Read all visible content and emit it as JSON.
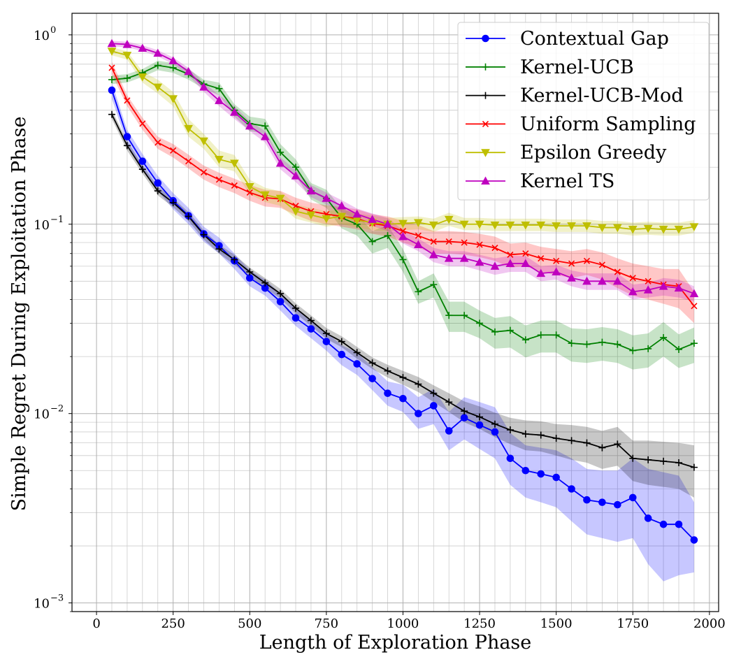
{
  "chart_data": {
    "type": "line",
    "xlabel": "Length of Exploration Phase",
    "ylabel": "Simple Regret During Exploitation Phase",
    "xlim": [
      -80,
      2030
    ],
    "ylim": [
      0.0009,
      1.3
    ],
    "yscale": "log",
    "xticks": [
      0,
      250,
      500,
      750,
      1000,
      1250,
      1500,
      1750,
      2000
    ],
    "xtick_labels": [
      "0",
      "250",
      "500",
      "750",
      "1000",
      "1250",
      "1500",
      "1750",
      "2000"
    ],
    "yticks": [
      0.001,
      0.01,
      0.1,
      1
    ],
    "ytick_labels": [
      "10",
      "10",
      "10",
      "10"
    ],
    "ytick_exps": [
      "−3",
      "−2",
      "−1",
      "0"
    ],
    "grid": true,
    "legend_position": "top-right",
    "x": [
      50,
      100,
      150,
      200,
      250,
      300,
      350,
      400,
      450,
      500,
      550,
      600,
      650,
      700,
      750,
      800,
      850,
      900,
      950,
      1000,
      1050,
      1100,
      1150,
      1200,
      1250,
      1300,
      1350,
      1400,
      1450,
      1500,
      1550,
      1600,
      1650,
      1700,
      1750,
      1800,
      1850,
      1900,
      1950
    ],
    "series": [
      {
        "name": "Contextual Gap",
        "color": "#0000ff",
        "marker": "circle",
        "values": [
          0.51,
          0.29,
          0.215,
          0.165,
          0.133,
          0.111,
          0.089,
          0.077,
          0.064,
          0.052,
          0.046,
          0.039,
          0.032,
          0.028,
          0.024,
          0.0205,
          0.0183,
          0.0153,
          0.0128,
          0.012,
          0.01,
          0.011,
          0.0081,
          0.0095,
          0.0087,
          0.008,
          0.0058,
          0.005,
          0.0048,
          0.0046,
          0.004,
          0.0035,
          0.0034,
          0.0033,
          0.0036,
          0.0028,
          0.0026,
          0.0026,
          0.00215
        ],
        "lower": [
          0.46,
          0.265,
          0.195,
          0.15,
          0.12,
          0.1,
          0.081,
          0.07,
          0.058,
          0.047,
          0.042,
          0.035,
          0.029,
          0.025,
          0.0215,
          0.018,
          0.016,
          0.0133,
          0.011,
          0.0102,
          0.0083,
          0.0088,
          0.0064,
          0.0073,
          0.0065,
          0.0058,
          0.0042,
          0.0036,
          0.0034,
          0.0032,
          0.0027,
          0.0023,
          0.0022,
          0.0021,
          0.0022,
          0.0016,
          0.0013,
          0.0014,
          0.00145
        ],
        "upper": [
          0.56,
          0.315,
          0.235,
          0.18,
          0.146,
          0.122,
          0.097,
          0.085,
          0.07,
          0.057,
          0.051,
          0.043,
          0.036,
          0.031,
          0.0268,
          0.023,
          0.021,
          0.0176,
          0.0148,
          0.0142,
          0.0122,
          0.0135,
          0.0102,
          0.0122,
          0.0115,
          0.0108,
          0.0079,
          0.0068,
          0.0066,
          0.0064,
          0.0058,
          0.0051,
          0.005,
          0.005,
          0.0058,
          0.0051,
          0.0049,
          0.0047,
          0.0034
        ]
      },
      {
        "name": "Kernel-UCB",
        "color": "#008000",
        "marker": "plus",
        "values": [
          0.58,
          0.59,
          0.63,
          0.69,
          0.67,
          0.62,
          0.55,
          0.52,
          0.4,
          0.34,
          0.33,
          0.24,
          0.2,
          0.15,
          0.137,
          0.108,
          0.1,
          0.081,
          0.087,
          0.065,
          0.044,
          0.048,
          0.033,
          0.033,
          0.03,
          0.027,
          0.0275,
          0.0245,
          0.026,
          0.026,
          0.0235,
          0.0232,
          0.0238,
          0.0232,
          0.0215,
          0.022,
          0.0252,
          0.0218,
          0.0235
        ],
        "lower": [
          0.55,
          0.56,
          0.6,
          0.65,
          0.63,
          0.58,
          0.52,
          0.48,
          0.37,
          0.31,
          0.3,
          0.215,
          0.18,
          0.135,
          0.122,
          0.095,
          0.087,
          0.07,
          0.075,
          0.056,
          0.038,
          0.041,
          0.027,
          0.027,
          0.025,
          0.022,
          0.0223,
          0.0198,
          0.021,
          0.021,
          0.0188,
          0.0185,
          0.019,
          0.0185,
          0.0171,
          0.0175,
          0.02,
          0.0174,
          0.0185
        ],
        "upper": [
          0.61,
          0.62,
          0.66,
          0.73,
          0.71,
          0.66,
          0.58,
          0.56,
          0.43,
          0.37,
          0.36,
          0.265,
          0.22,
          0.165,
          0.152,
          0.121,
          0.113,
          0.092,
          0.099,
          0.074,
          0.05,
          0.055,
          0.039,
          0.039,
          0.035,
          0.032,
          0.0327,
          0.0292,
          0.031,
          0.031,
          0.0282,
          0.0279,
          0.0286,
          0.0279,
          0.0259,
          0.0265,
          0.0304,
          0.0262,
          0.0285
        ]
      },
      {
        "name": "Kernel-UCB-Mod",
        "color": "#000000",
        "marker": "plus",
        "values": [
          0.38,
          0.26,
          0.195,
          0.15,
          0.13,
          0.11,
          0.088,
          0.074,
          0.065,
          0.056,
          0.049,
          0.043,
          0.036,
          0.031,
          0.0265,
          0.024,
          0.021,
          0.0185,
          0.0168,
          0.0155,
          0.0143,
          0.0128,
          0.0115,
          0.0103,
          0.0096,
          0.0088,
          0.0082,
          0.0078,
          0.0077,
          0.0074,
          0.0072,
          0.007,
          0.0066,
          0.0069,
          0.0058,
          0.0057,
          0.0056,
          0.0055,
          0.0052
        ],
        "lower": [
          0.36,
          0.245,
          0.185,
          0.142,
          0.123,
          0.104,
          0.083,
          0.07,
          0.061,
          0.053,
          0.046,
          0.0405,
          0.0338,
          0.029,
          0.0248,
          0.0224,
          0.0195,
          0.0172,
          0.0155,
          0.0142,
          0.013,
          0.0115,
          0.0102,
          0.009,
          0.0083,
          0.0075,
          0.0069,
          0.0064,
          0.0063,
          0.006,
          0.0057,
          0.0055,
          0.0051,
          0.0053,
          0.0044,
          0.0042,
          0.0041,
          0.004,
          0.0036
        ],
        "upper": [
          0.4,
          0.275,
          0.205,
          0.158,
          0.137,
          0.116,
          0.093,
          0.078,
          0.069,
          0.059,
          0.052,
          0.0455,
          0.0382,
          0.033,
          0.0283,
          0.0256,
          0.0225,
          0.0198,
          0.0181,
          0.0168,
          0.0156,
          0.0141,
          0.0128,
          0.0116,
          0.0109,
          0.0101,
          0.0095,
          0.0092,
          0.0091,
          0.0088,
          0.0087,
          0.0085,
          0.0081,
          0.0085,
          0.0072,
          0.0072,
          0.0071,
          0.007,
          0.0068
        ]
      },
      {
        "name": "Uniform Sampling",
        "color": "#ff0000",
        "marker": "x",
        "values": [
          0.67,
          0.45,
          0.34,
          0.27,
          0.245,
          0.215,
          0.188,
          0.172,
          0.16,
          0.147,
          0.138,
          0.136,
          0.125,
          0.117,
          0.113,
          0.11,
          0.107,
          0.101,
          0.098,
          0.092,
          0.087,
          0.081,
          0.081,
          0.08,
          0.078,
          0.075,
          0.069,
          0.07,
          0.066,
          0.064,
          0.062,
          0.064,
          0.061,
          0.056,
          0.052,
          0.05,
          0.048,
          0.047,
          0.037
        ],
        "lower": [
          0.62,
          0.42,
          0.315,
          0.25,
          0.225,
          0.197,
          0.172,
          0.157,
          0.146,
          0.133,
          0.124,
          0.122,
          0.112,
          0.104,
          0.1,
          0.097,
          0.094,
          0.089,
          0.086,
          0.08,
          0.075,
          0.07,
          0.07,
          0.069,
          0.067,
          0.064,
          0.059,
          0.06,
          0.056,
          0.054,
          0.052,
          0.054,
          0.051,
          0.046,
          0.042,
          0.04,
          0.038,
          0.036,
          0.03
        ],
        "upper": [
          0.72,
          0.48,
          0.365,
          0.29,
          0.265,
          0.233,
          0.204,
          0.187,
          0.174,
          0.161,
          0.152,
          0.15,
          0.138,
          0.13,
          0.126,
          0.123,
          0.12,
          0.113,
          0.11,
          0.104,
          0.099,
          0.092,
          0.092,
          0.091,
          0.089,
          0.086,
          0.079,
          0.08,
          0.076,
          0.074,
          0.072,
          0.074,
          0.071,
          0.066,
          0.062,
          0.06,
          0.058,
          0.058,
          0.044
        ]
      },
      {
        "name": "Epsilon Greedy",
        "color": "#bfbf00",
        "marker": "triangle-down",
        "values": [
          0.82,
          0.78,
          0.6,
          0.53,
          0.46,
          0.32,
          0.275,
          0.22,
          0.21,
          0.158,
          0.143,
          0.137,
          0.117,
          0.112,
          0.107,
          0.11,
          0.105,
          0.102,
          0.1,
          0.101,
          0.102,
          0.099,
          0.106,
          0.1,
          0.1,
          0.099,
          0.099,
          0.099,
          0.099,
          0.098,
          0.098,
          0.098,
          0.096,
          0.096,
          0.094,
          0.095,
          0.094,
          0.094,
          0.097
        ],
        "lower": [
          0.78,
          0.74,
          0.56,
          0.49,
          0.42,
          0.29,
          0.25,
          0.2,
          0.19,
          0.144,
          0.131,
          0.125,
          0.107,
          0.102,
          0.097,
          0.1,
          0.096,
          0.093,
          0.092,
          0.093,
          0.094,
          0.091,
          0.098,
          0.093,
          0.093,
          0.092,
          0.092,
          0.092,
          0.092,
          0.091,
          0.091,
          0.091,
          0.089,
          0.089,
          0.087,
          0.088,
          0.087,
          0.087,
          0.09
        ],
        "upper": [
          0.86,
          0.82,
          0.64,
          0.58,
          0.5,
          0.36,
          0.3,
          0.245,
          0.232,
          0.172,
          0.156,
          0.149,
          0.127,
          0.122,
          0.117,
          0.12,
          0.114,
          0.111,
          0.108,
          0.109,
          0.11,
          0.107,
          0.115,
          0.108,
          0.108,
          0.107,
          0.107,
          0.107,
          0.107,
          0.106,
          0.106,
          0.106,
          0.104,
          0.104,
          0.102,
          0.103,
          0.102,
          0.102,
          0.105
        ]
      },
      {
        "name": "Kernel TS",
        "color": "#bf00bf",
        "marker": "triangle-up",
        "values": [
          0.9,
          0.89,
          0.85,
          0.8,
          0.73,
          0.64,
          0.53,
          0.45,
          0.39,
          0.33,
          0.29,
          0.21,
          0.18,
          0.15,
          0.137,
          0.125,
          0.113,
          0.106,
          0.1,
          0.086,
          0.078,
          0.069,
          0.066,
          0.066,
          0.063,
          0.06,
          0.062,
          0.062,
          0.055,
          0.056,
          0.052,
          0.05,
          0.05,
          0.05,
          0.044,
          0.045,
          0.047,
          0.046,
          0.043
        ],
        "lower": [
          0.87,
          0.86,
          0.82,
          0.77,
          0.7,
          0.61,
          0.5,
          0.42,
          0.36,
          0.31,
          0.27,
          0.195,
          0.167,
          0.139,
          0.127,
          0.116,
          0.105,
          0.098,
          0.092,
          0.079,
          0.072,
          0.063,
          0.06,
          0.06,
          0.057,
          0.054,
          0.056,
          0.056,
          0.05,
          0.051,
          0.047,
          0.045,
          0.045,
          0.045,
          0.04,
          0.041,
          0.042,
          0.041,
          0.039
        ],
        "upper": [
          0.93,
          0.92,
          0.88,
          0.83,
          0.76,
          0.67,
          0.56,
          0.48,
          0.42,
          0.35,
          0.31,
          0.225,
          0.193,
          0.161,
          0.147,
          0.134,
          0.121,
          0.114,
          0.108,
          0.093,
          0.084,
          0.075,
          0.072,
          0.072,
          0.069,
          0.066,
          0.068,
          0.068,
          0.06,
          0.061,
          0.057,
          0.055,
          0.055,
          0.055,
          0.048,
          0.049,
          0.052,
          0.051,
          0.047
        ]
      }
    ]
  }
}
